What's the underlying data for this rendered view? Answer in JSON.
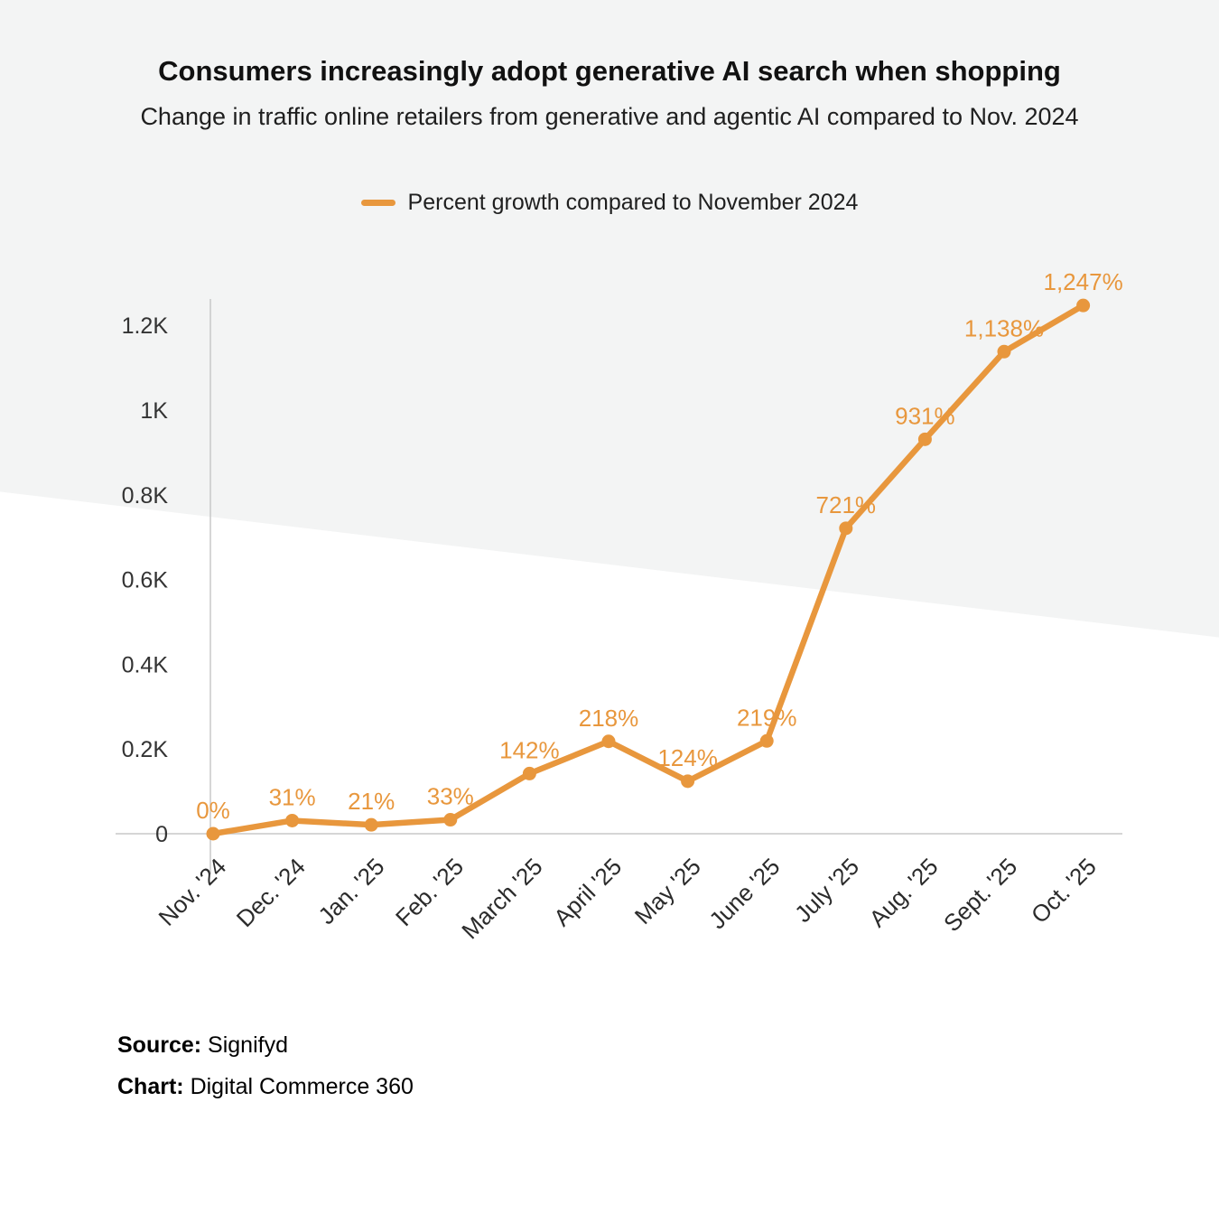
{
  "chart_data": {
    "type": "line",
    "title": "Consumers increasingly adopt generative AI search when shopping",
    "subtitle": "Change in traffic online retailers from generative and agentic AI compared to Nov. 2024",
    "legend": "Percent growth compared to November 2024",
    "categories": [
      "Nov. '24",
      "Dec. '24",
      "Jan. '25",
      "Feb. '25",
      "March '25",
      "April '25",
      "May '25",
      "June '25",
      "July '25",
      "Aug. '25",
      "Sept. '25",
      "Oct. '25"
    ],
    "values": [
      0,
      31,
      21,
      33,
      142,
      218,
      124,
      219,
      721,
      931,
      1138,
      1247
    ],
    "labels": [
      "0%",
      "31%",
      "21%",
      "33%",
      "142%",
      "218%",
      "124%",
      "219%",
      "721%",
      "931%",
      "1,138%",
      "1,247%"
    ],
    "yticks": {
      "labels": [
        "0",
        "0.2K",
        "0.4K",
        "0.6K",
        "0.8K",
        "1K",
        "1.2K"
      ],
      "values": [
        0,
        200,
        400,
        600,
        800,
        1000,
        1200
      ]
    },
    "ylim": [
      0,
      1260
    ],
    "xlabel": "",
    "ylabel": "",
    "grid": "off",
    "legend_position": "top-center",
    "line_color": "#e8973d"
  },
  "colors": {
    "accent": "#e8973d",
    "background_band": "#f3f4f4",
    "axis": "#c8c8c8",
    "tick_text": "#333333",
    "x_label_text": "#2b2b2b"
  },
  "footer": {
    "source_label": "Source:",
    "source_value": "Signifyd",
    "chart_label": "Chart:",
    "chart_value": "Digital Commerce 360"
  }
}
